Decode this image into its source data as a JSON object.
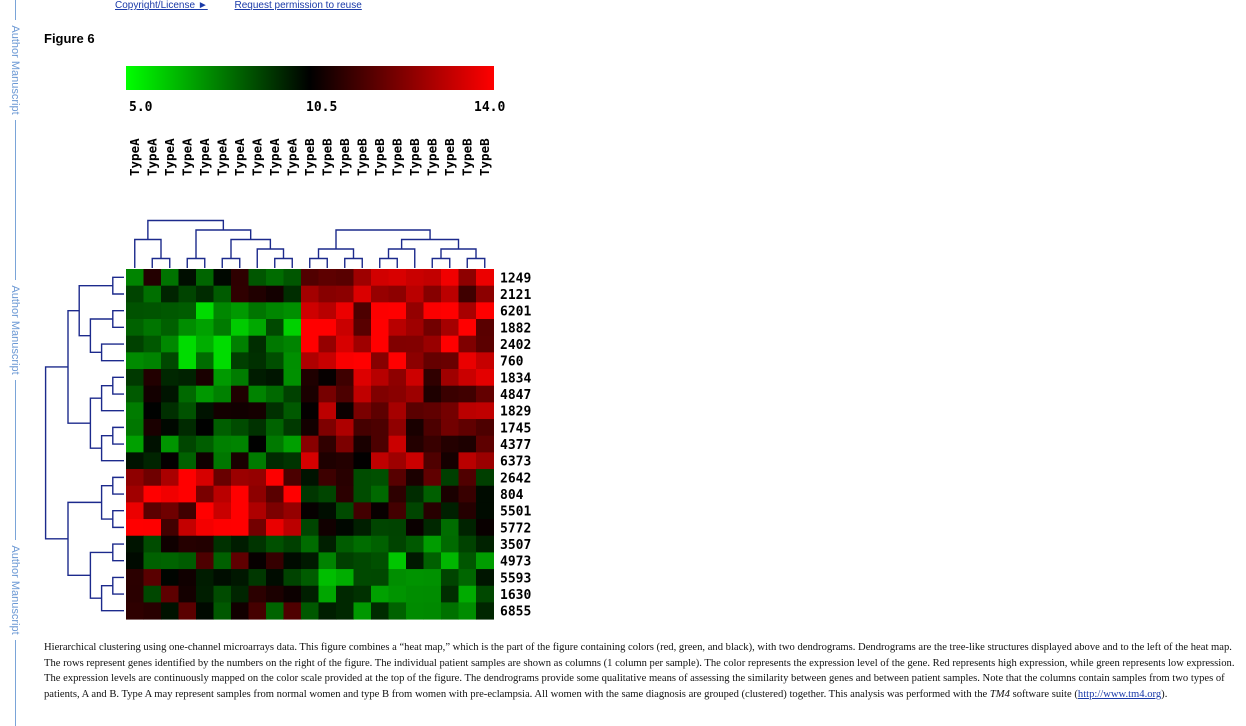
{
  "toplinks": {
    "copyright": "Copyright/License ►",
    "permission": "Request permission to reuse"
  },
  "sidebar": {
    "label": "Author Manuscript"
  },
  "figure": {
    "title": "Figure 6",
    "scale": {
      "min_label": "5.0",
      "mid_label": "10.5",
      "max_label": "14.0",
      "min": 5.0,
      "mid": 10.5,
      "max": 14.0,
      "colors": {
        "low": "#00ff00",
        "mid": "#000000",
        "high": "#ff0000"
      }
    },
    "columns": [
      "TypeA",
      "TypeA",
      "TypeA",
      "TypeA",
      "TypeA",
      "TypeA",
      "TypeA",
      "TypeA",
      "TypeA",
      "TypeA",
      "TypeB",
      "TypeB",
      "TypeB",
      "TypeB",
      "TypeB",
      "TypeB",
      "TypeB",
      "TypeB",
      "TypeB",
      "TypeB",
      "TypeB"
    ],
    "rows": [
      "1249",
      "2121",
      "6201",
      "1882",
      "2402",
      "760",
      "1834",
      "4847",
      "1829",
      "1745",
      "4377",
      "6373",
      "2642",
      "804",
      "5501",
      "5772",
      "3507",
      "4973",
      "5593",
      "1630",
      "6855"
    ],
    "line_color": "#1c2a8c"
  },
  "caption": {
    "text": "Hierarchical clustering using one-channel microarrays data. This figure combines a “heat map,” which is the part of the figure containing colors (red, green, and black), with two dendrograms. Dendrograms are the tree-like structures displayed above and to the left of the heat map. The rows represent genes identified by the numbers on the right of the figure. The individual patient samples are shown as columns (1 column per sample). The color represents the expression level of the gene. Red represents high expression, while green represents low expression. The expression levels are continuously mapped on the color scale provided at the top of the figure. The dendrograms provide some qualitative means of assessing the similarity between genes and between patient samples. Note that the columns contain samples from two types of patients, A and B. Type A may represent samples from normal women and type B from women with pre-eclampsia. All women with the same diagnosis are grouped (clustered) together. This analysis was performed with the ",
    "software": "TM4",
    "after_software": " software suite (",
    "link": "http://www.tm4.org",
    "end": ")."
  }
}
